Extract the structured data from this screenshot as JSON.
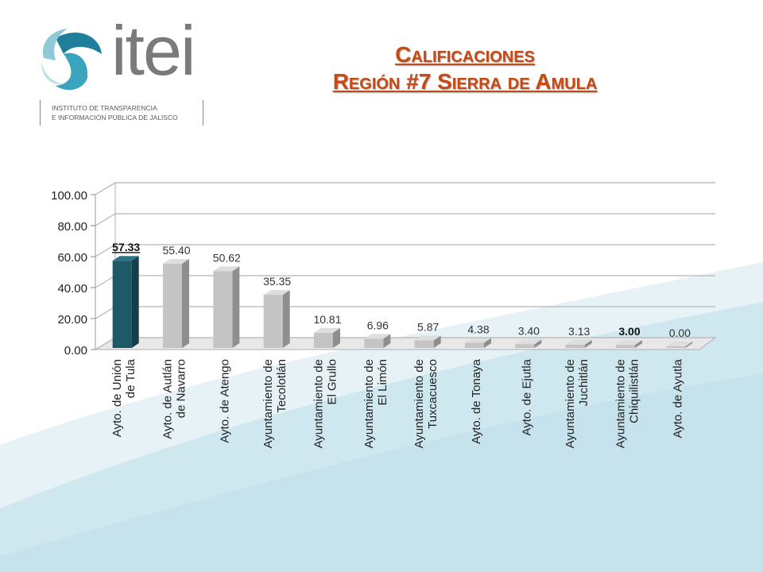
{
  "logo": {
    "wordmark": "itei",
    "subtitle_line1": "INSTITUTO DE TRANSPARENCIA",
    "subtitle_line2": "E INFORMACIÓN PÚBLICA DE JALISCO"
  },
  "title": {
    "line1": "Calificaciones",
    "line2": "Región #7 Sierra de Amula"
  },
  "colors": {
    "title": "#c84a12",
    "highlight_bar": "#1f5968",
    "regular_bar": "#c4c4c4",
    "background_wave": "#cfe7ef"
  },
  "chart_data": {
    "type": "bar",
    "title": "",
    "xlabel": "",
    "ylabel": "",
    "ylim": [
      0,
      100
    ],
    "yticks": [
      "0.00",
      "20.00",
      "40.00",
      "60.00",
      "80.00",
      "100.00"
    ],
    "grid": true,
    "style": "3d",
    "categories": [
      [
        "Ayto. de Unión",
        "de Tula"
      ],
      [
        "Ayto. de Autlán",
        "de Navarro"
      ],
      [
        "Ayto. de Atengo"
      ],
      [
        "Ayuntamiento de",
        "Tecolotlán"
      ],
      [
        "Ayuntamiento de",
        "El Grullo"
      ],
      [
        "Ayuntamiento de",
        "El Limón"
      ],
      [
        "Ayuntamiento de",
        "Tuxcacuesco"
      ],
      [
        "Ayto. de Tonaya"
      ],
      [
        "Ayto. de Ejutla"
      ],
      [
        "Ayuntamiento de",
        "Juchitlán"
      ],
      [
        "Ayuntamiento de",
        "Chiquilistlán"
      ],
      [
        "Ayto. de Ayutla"
      ]
    ],
    "values": [
      57.33,
      55.4,
      50.62,
      35.35,
      10.81,
      6.96,
      5.87,
      4.38,
      3.4,
      3.13,
      3.0,
      0.0
    ],
    "labels": [
      "57.33",
      "55.40",
      "50.62",
      "35.35",
      "10.81",
      "6.96",
      "5.87",
      "4.38",
      "3.40",
      "3.13",
      "3.00",
      "0.00"
    ],
    "highlighted": [
      0
    ],
    "bold_labels": [
      0,
      10
    ]
  }
}
